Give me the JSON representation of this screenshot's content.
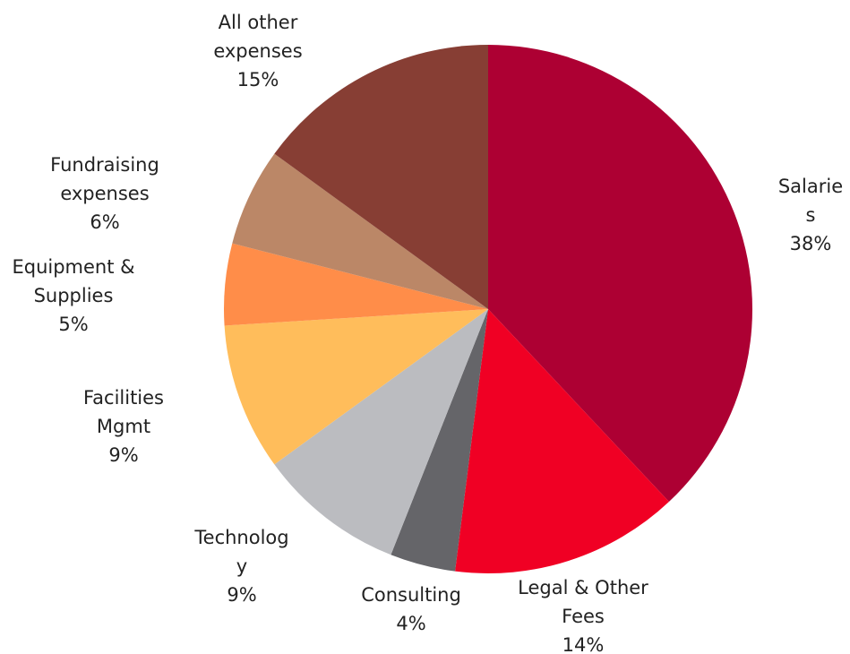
{
  "chart_data": {
    "type": "pie",
    "slices": [
      {
        "label": "Salaries",
        "label_lines": [
          "Salarie",
          "s"
        ],
        "pct": "38%",
        "value": 38,
        "color": "#ad0033"
      },
      {
        "label": "Legal & Other Fees",
        "label_lines": [
          "Legal & Other",
          "Fees"
        ],
        "pct": "14%",
        "value": 14,
        "color": "#f00024"
      },
      {
        "label": "Consulting",
        "label_lines": [
          "Consulting"
        ],
        "pct": "4%",
        "value": 4,
        "color": "#656569"
      },
      {
        "label": "Technology",
        "label_lines": [
          "Technolog",
          "y"
        ],
        "pct": "9%",
        "value": 9,
        "color": "#bbbcc0"
      },
      {
        "label": "Facilities Mgmt",
        "label_lines": [
          "Facilities",
          "Mgmt"
        ],
        "pct": "9%",
        "value": 9,
        "color": "#ffbd5b"
      },
      {
        "label": "Equipment & Supplies",
        "label_lines": [
          "Equipment &",
          "Supplies"
        ],
        "pct": "5%",
        "value": 5,
        "color": "#ff8d49"
      },
      {
        "label": "Fundraising expenses",
        "label_lines": [
          "Fundraising",
          "expenses"
        ],
        "pct": "6%",
        "value": 6,
        "color": "#bb8767"
      },
      {
        "label": "All other expenses",
        "label_lines": [
          "All other",
          "expenses"
        ],
        "pct": "15%",
        "value": 15,
        "color": "#873e34"
      }
    ]
  }
}
